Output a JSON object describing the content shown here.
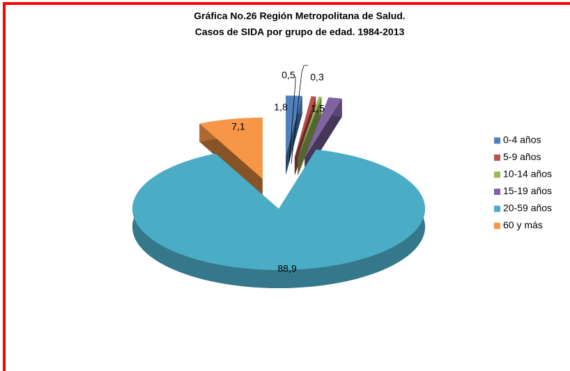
{
  "chart_data": {
    "type": "pie",
    "title": [
      "Gráfica No.26  Región Metropolitana  de Salud.",
      "Casos de SIDA por grupo de edad.  1984-2013"
    ],
    "categories": [
      "0-4 años",
      "5-9 años",
      "10-14 años",
      "15-19 años",
      "20-59 años",
      "60 y más"
    ],
    "values": [
      1.8,
      0.5,
      0.3,
      1.5,
      88.9,
      7.1
    ],
    "value_labels": [
      "1,8",
      "0,5",
      "0,3",
      "1,5",
      "88,9",
      "7,1"
    ],
    "colors": [
      "#4f81bd",
      "#c0504d",
      "#9bbb59",
      "#8064a2",
      "#4bacc6",
      "#f79646"
    ],
    "legend": "right"
  }
}
